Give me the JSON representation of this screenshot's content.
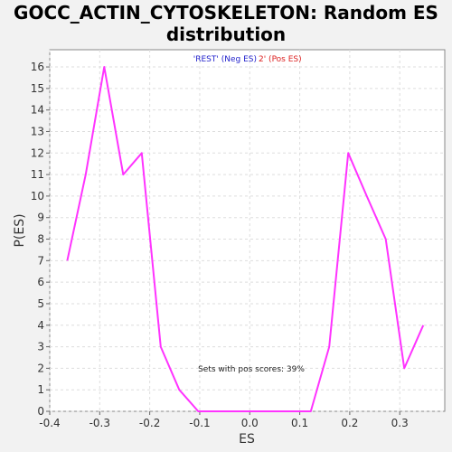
{
  "chart_data": {
    "type": "line",
    "title_line1": "GOCC_ACTIN_CYTOSKELETON: Random ES",
    "title_line2": "distribution",
    "xlabel": "ES",
    "ylabel": "P(ES)",
    "xlim": [
      -0.4,
      0.39
    ],
    "ylim": [
      0,
      16.8
    ],
    "x_ticks": [
      -0.4,
      -0.3,
      -0.2,
      -0.1,
      0.0,
      0.1,
      0.2,
      0.3
    ],
    "x_tick_labels": [
      "-0.4",
      "-0.3",
      "-0.2",
      "-0.1",
      "0.0",
      "0.1",
      "0.2",
      "0.3"
    ],
    "y_ticks": [
      0,
      1,
      2,
      3,
      4,
      5,
      6,
      7,
      8,
      9,
      10,
      11,
      12,
      13,
      14,
      15,
      16
    ],
    "grid": true,
    "legend": {
      "position": "top",
      "neg_label": "'REST' (Neg ES)",
      "pos_label": "2' (Pos ES)",
      "neg_color": "#2222cc",
      "pos_color": "#dd2222"
    },
    "annotation": "Sets with pos scores: 39%",
    "series": [
      {
        "color": "#ff33ff",
        "x": [
          -0.365,
          -0.328,
          -0.291,
          -0.253,
          -0.216,
          -0.178,
          -0.141,
          -0.103,
          -0.066,
          -0.028,
          0.009,
          0.047,
          0.084,
          0.122,
          0.159,
          0.197,
          0.234,
          0.272,
          0.309,
          0.347
        ],
        "y": [
          7,
          11,
          16,
          11,
          12,
          3,
          1,
          0,
          0,
          0,
          0,
          0,
          0,
          0,
          3,
          12,
          10,
          8,
          2,
          4
        ]
      }
    ]
  }
}
